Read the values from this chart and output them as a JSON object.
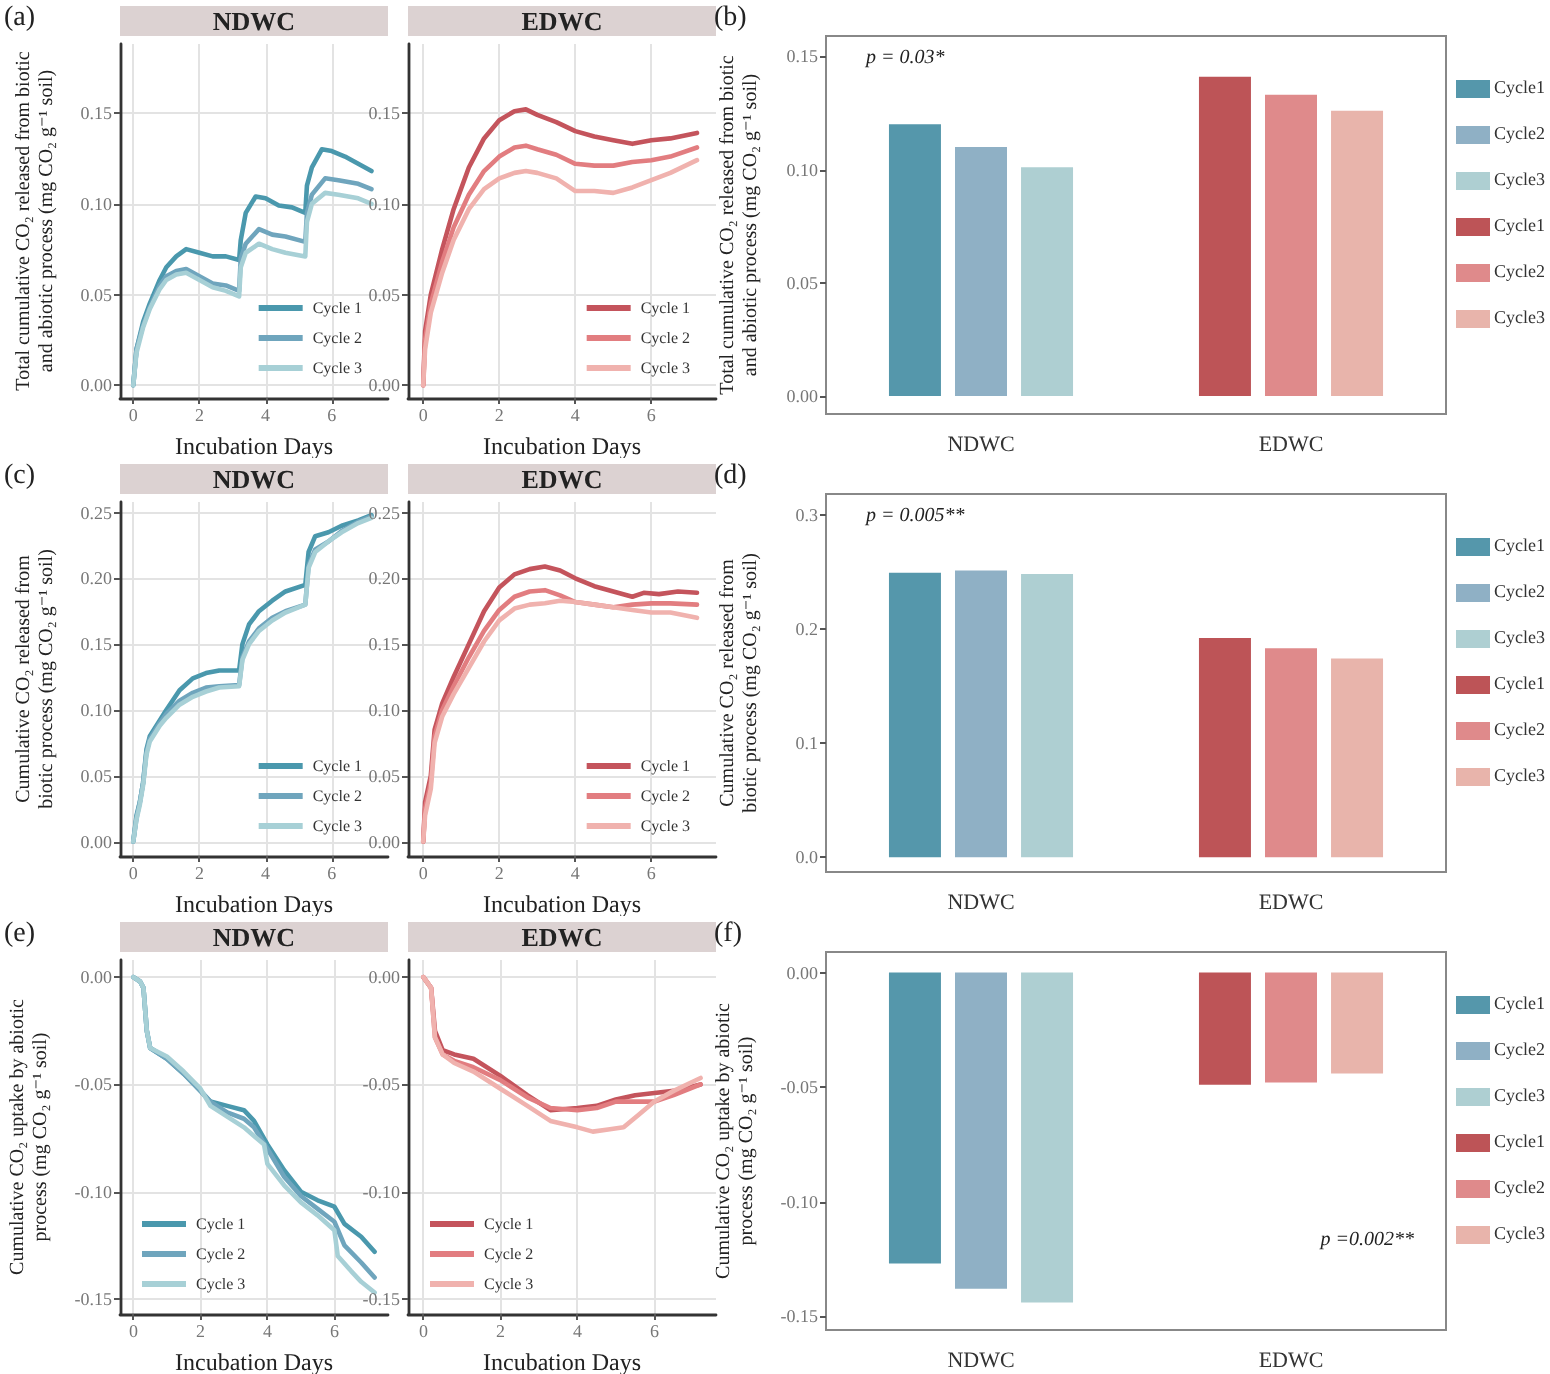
{
  "chart_data": [
    {
      "type": "line",
      "title": "NDWC",
      "xlabel": "Incubation Days",
      "ylabel": "Total cumulative CO₂ released from biotic and abiotic process (mg CO₂ g⁻¹ soil)",
      "annotations": [
        "(a)"
      ],
      "xlim": [
        -0.4,
        7.7
      ],
      "xticks": [
        0,
        2,
        4,
        6
      ],
      "ylim": [
        -0.007,
        0.188
      ],
      "yticks": [
        {
          "value": 0,
          "label": "0.00"
        },
        0.05,
        {
          "value": 0.1,
          "label": "0.10"
        },
        0.15
      ],
      "grid": true,
      "legend": "bottom right",
      "series": [
        {
          "name": "Cycle 1",
          "color": "#4a98ad",
          "x": [
            0,
            0.1,
            0.3,
            0.5,
            0.8,
            1.0,
            1.3,
            1.6,
            2.0,
            2.4,
            2.8,
            3.2,
            3.25,
            3.4,
            3.7,
            4.0,
            4.4,
            4.8,
            5.2,
            5.25,
            5.4,
            5.7,
            6.0,
            6.4,
            6.8,
            7.2
          ],
          "values": [
            0,
            0.02,
            0.035,
            0.045,
            0.058,
            0.065,
            0.071,
            0.075,
            0.073,
            0.071,
            0.071,
            0.069,
            0.08,
            0.095,
            0.104,
            0.103,
            0.099,
            0.098,
            0.095,
            0.11,
            0.12,
            0.13,
            0.129,
            0.126,
            0.122,
            0.118
          ]
        },
        {
          "name": "Cycle 2",
          "color": "#6fa5bd",
          "x": [
            0,
            0.1,
            0.3,
            0.5,
            0.8,
            1.0,
            1.3,
            1.6,
            2.0,
            2.4,
            2.8,
            3.2,
            3.25,
            3.4,
            3.8,
            4.2,
            4.6,
            5.2,
            5.25,
            5.4,
            5.8,
            6.2,
            6.8,
            7.2
          ],
          "values": [
            0,
            0.02,
            0.033,
            0.043,
            0.055,
            0.06,
            0.063,
            0.064,
            0.06,
            0.056,
            0.055,
            0.052,
            0.07,
            0.078,
            0.086,
            0.083,
            0.082,
            0.079,
            0.095,
            0.105,
            0.114,
            0.113,
            0.111,
            0.108
          ]
        },
        {
          "name": "Cycle 3",
          "color": "#a7d0d6",
          "x": [
            0,
            0.1,
            0.3,
            0.5,
            0.8,
            1.0,
            1.3,
            1.6,
            2.0,
            2.4,
            2.8,
            3.2,
            3.25,
            3.4,
            3.8,
            4.2,
            4.6,
            5.2,
            5.25,
            5.4,
            5.8,
            6.2,
            6.8,
            7.2
          ],
          "values": [
            0,
            0.018,
            0.032,
            0.042,
            0.053,
            0.058,
            0.061,
            0.062,
            0.058,
            0.054,
            0.052,
            0.049,
            0.065,
            0.073,
            0.078,
            0.075,
            0.073,
            0.071,
            0.09,
            0.1,
            0.106,
            0.105,
            0.103,
            0.1
          ]
        }
      ]
    },
    {
      "type": "line",
      "title": "EDWC",
      "xlabel": "Incubation Days",
      "xlim": [
        -0.4,
        7.7
      ],
      "xticks": [
        0,
        2,
        4,
        6
      ],
      "ylim": [
        -0.007,
        0.188
      ],
      "yticks": [
        {
          "value": 0,
          "label": "0.00"
        },
        0.05,
        {
          "value": 0.1,
          "label": "0.10"
        },
        0.15
      ],
      "grid": true,
      "legend": "bottom right",
      "series": [
        {
          "name": "Cycle 1",
          "color": "#c4545c",
          "x": [
            0,
            0.05,
            0.2,
            0.5,
            0.8,
            1.2,
            1.6,
            2.0,
            2.4,
            2.7,
            3.0,
            3.5,
            4.0,
            4.5,
            5.0,
            5.5,
            6.0,
            6.5,
            7.2
          ],
          "values": [
            0,
            0.03,
            0.05,
            0.075,
            0.097,
            0.12,
            0.136,
            0.146,
            0.151,
            0.152,
            0.149,
            0.145,
            0.14,
            0.137,
            0.135,
            0.133,
            0.135,
            0.136,
            0.139
          ]
        },
        {
          "name": "Cycle 2",
          "color": "#e27d80",
          "x": [
            0,
            0.05,
            0.2,
            0.5,
            0.8,
            1.2,
            1.6,
            2.0,
            2.4,
            2.7,
            3.0,
            3.5,
            4.0,
            4.5,
            5.0,
            5.5,
            6.0,
            6.5,
            7.2
          ],
          "values": [
            0,
            0.025,
            0.045,
            0.068,
            0.087,
            0.105,
            0.118,
            0.126,
            0.131,
            0.132,
            0.13,
            0.127,
            0.122,
            0.121,
            0.121,
            0.123,
            0.124,
            0.126,
            0.131
          ]
        },
        {
          "name": "Cycle 3",
          "color": "#f0b2ae",
          "x": [
            0,
            0.05,
            0.2,
            0.5,
            0.8,
            1.2,
            1.6,
            2.0,
            2.4,
            2.7,
            3.0,
            3.5,
            4.0,
            4.5,
            5.0,
            5.5,
            6.0,
            6.5,
            7.2
          ],
          "values": [
            0,
            0.02,
            0.04,
            0.062,
            0.08,
            0.097,
            0.108,
            0.114,
            0.117,
            0.118,
            0.117,
            0.114,
            0.107,
            0.107,
            0.106,
            0.109,
            0.113,
            0.117,
            0.124
          ]
        }
      ]
    },
    {
      "type": "bar",
      "ylabel": "Total cumulative CO₂ released from biotic and abiotic process (mg CO₂ g⁻¹ soil)",
      "annotations": [
        "(b)",
        "p = 0.03*"
      ],
      "categories": [
        "NDWC",
        "EDWC"
      ],
      "ylim": [
        -0.008,
        0.159
      ],
      "yticks": [
        {
          "value": 0,
          "label": "0.00"
        },
        0.05,
        {
          "value": 0.1,
          "label": "0.10"
        },
        0.15
      ],
      "legend": "right",
      "series": [
        {
          "name": "Cycle1",
          "color": "#5597ab",
          "values": [
            0.12,
            null
          ]
        },
        {
          "name": "Cycle2",
          "color": "#8fb0c5",
          "values": [
            0.11,
            null
          ]
        },
        {
          "name": "Cycle3",
          "color": "#aecfd2",
          "values": [
            0.101,
            null
          ]
        },
        {
          "name": "Cycle1",
          "color": "#bd5457",
          "values": [
            null,
            0.141
          ]
        },
        {
          "name": "Cycle2",
          "color": "#df8a8b",
          "values": [
            null,
            0.133
          ]
        },
        {
          "name": "Cycle3",
          "color": "#e8b4ab",
          "values": [
            null,
            0.126
          ]
        }
      ]
    },
    {
      "type": "line",
      "title": "NDWC",
      "xlabel": "Incubation Days",
      "ylabel": "Cumulative CO₂ released from biotic process (mg CO₂ g⁻¹ soil)",
      "annotations": [
        "(c)"
      ],
      "xlim": [
        -0.4,
        7.7
      ],
      "xticks": [
        0,
        2,
        4,
        6
      ],
      "ylim": [
        -0.011,
        0.258
      ],
      "yticks": [
        {
          "value": 0,
          "label": "0.00"
        },
        0.05,
        {
          "value": 0.1,
          "label": "0.10"
        },
        0.15,
        {
          "value": 0.2,
          "label": "0.20"
        },
        0.25
      ],
      "grid": true,
      "legend": "bottom right",
      "series": [
        {
          "name": "Cycle 1",
          "color": "#4a98ad",
          "x": [
            0,
            0.1,
            0.2,
            0.3,
            0.4,
            0.5,
            0.8,
            1.0,
            1.4,
            1.8,
            2.2,
            2.6,
            3.2,
            3.3,
            3.5,
            3.8,
            4.2,
            4.6,
            5.2,
            5.3,
            5.5,
            5.9,
            6.3,
            6.8,
            7.2
          ],
          "values": [
            0,
            0.02,
            0.03,
            0.045,
            0.07,
            0.08,
            0.092,
            0.1,
            0.115,
            0.124,
            0.128,
            0.13,
            0.13,
            0.15,
            0.165,
            0.175,
            0.183,
            0.19,
            0.195,
            0.22,
            0.232,
            0.235,
            0.24,
            0.244,
            0.248
          ]
        },
        {
          "name": "Cycle 2",
          "color": "#6fa5bd",
          "x": [
            0,
            0.1,
            0.2,
            0.3,
            0.4,
            0.5,
            0.8,
            1.0,
            1.4,
            1.8,
            2.2,
            2.6,
            3.2,
            3.3,
            3.5,
            3.8,
            4.2,
            4.6,
            5.2,
            5.3,
            5.5,
            5.9,
            6.3,
            6.8,
            7.2
          ],
          "values": [
            0,
            0.018,
            0.03,
            0.045,
            0.068,
            0.078,
            0.09,
            0.097,
            0.107,
            0.113,
            0.117,
            0.118,
            0.119,
            0.14,
            0.152,
            0.162,
            0.17,
            0.175,
            0.18,
            0.21,
            0.222,
            0.228,
            0.236,
            0.243,
            0.247
          ]
        },
        {
          "name": "Cycle 3",
          "color": "#a7d0d6",
          "x": [
            0,
            0.1,
            0.2,
            0.3,
            0.4,
            0.5,
            0.8,
            1.0,
            1.4,
            1.8,
            2.2,
            2.6,
            3.2,
            3.3,
            3.5,
            3.8,
            4.2,
            4.6,
            5.2,
            5.3,
            5.5,
            5.9,
            6.3,
            6.8,
            7.2
          ],
          "values": [
            0,
            0.017,
            0.028,
            0.043,
            0.066,
            0.076,
            0.088,
            0.094,
            0.104,
            0.11,
            0.114,
            0.117,
            0.118,
            0.138,
            0.15,
            0.16,
            0.168,
            0.174,
            0.18,
            0.208,
            0.22,
            0.228,
            0.235,
            0.242,
            0.246
          ]
        }
      ]
    },
    {
      "type": "line",
      "title": "EDWC",
      "xlabel": "Incubation Days",
      "xlim": [
        -0.4,
        7.7
      ],
      "xticks": [
        0,
        2,
        4,
        6
      ],
      "ylim": [
        -0.011,
        0.258
      ],
      "yticks": [
        {
          "value": 0,
          "label": "0.00"
        },
        0.05,
        {
          "value": 0.1,
          "label": "0.10"
        },
        0.15,
        {
          "value": 0.2,
          "label": "0.20"
        },
        0.25
      ],
      "grid": true,
      "legend": "bottom right",
      "series": [
        {
          "name": "Cycle 1",
          "color": "#c4545c",
          "x": [
            0,
            0.05,
            0.2,
            0.3,
            0.5,
            0.8,
            1.2,
            1.6,
            2.0,
            2.4,
            2.8,
            3.2,
            3.6,
            4.0,
            4.5,
            5.0,
            5.5,
            5.8,
            6.2,
            6.7,
            7.2
          ],
          "values": [
            0,
            0.03,
            0.05,
            0.085,
            0.105,
            0.125,
            0.15,
            0.175,
            0.193,
            0.203,
            0.207,
            0.209,
            0.206,
            0.2,
            0.194,
            0.19,
            0.186,
            0.189,
            0.188,
            0.19,
            0.189
          ]
        },
        {
          "name": "Cycle 2",
          "color": "#e27d80",
          "x": [
            0,
            0.05,
            0.2,
            0.3,
            0.5,
            0.8,
            1.2,
            1.6,
            2.0,
            2.4,
            2.8,
            3.2,
            3.6,
            4.0,
            4.5,
            5.0,
            5.5,
            6.0,
            6.5,
            7.2
          ],
          "values": [
            0,
            0.025,
            0.045,
            0.08,
            0.1,
            0.118,
            0.14,
            0.16,
            0.176,
            0.186,
            0.19,
            0.191,
            0.187,
            0.182,
            0.18,
            0.178,
            0.18,
            0.181,
            0.181,
            0.18
          ]
        },
        {
          "name": "Cycle 3",
          "color": "#f0b2ae",
          "x": [
            0,
            0.05,
            0.2,
            0.3,
            0.5,
            0.8,
            1.2,
            1.6,
            2.0,
            2.4,
            2.8,
            3.2,
            3.6,
            4.0,
            4.5,
            5.0,
            5.5,
            6.0,
            6.5,
            7.2
          ],
          "values": [
            0,
            0.02,
            0.04,
            0.075,
            0.095,
            0.112,
            0.132,
            0.152,
            0.168,
            0.177,
            0.18,
            0.181,
            0.183,
            0.182,
            0.18,
            0.178,
            0.176,
            0.174,
            0.174,
            0.17
          ]
        }
      ]
    },
    {
      "type": "bar",
      "ylabel": "Cumulative CO₂ released from biotic process (mg CO₂ g⁻¹ soil)",
      "annotations": [
        "(d)",
        "p = 0.005**"
      ],
      "categories": [
        "NDWC",
        "EDWC"
      ],
      "ylim": [
        -0.013,
        0.318
      ],
      "yticks": [
        {
          "value": 0,
          "label": "0.0"
        },
        0.1,
        0.2,
        0.3
      ],
      "legend": "right",
      "series": [
        {
          "name": "Cycle1",
          "color": "#5597ab",
          "values": [
            0.249,
            null
          ]
        },
        {
          "name": "Cycle2",
          "color": "#8fb0c5",
          "values": [
            0.251,
            null
          ]
        },
        {
          "name": "Cycle3",
          "color": "#aecfd2",
          "values": [
            0.248,
            null
          ]
        },
        {
          "name": "Cycle1",
          "color": "#bd5457",
          "values": [
            null,
            0.192
          ]
        },
        {
          "name": "Cycle2",
          "color": "#df8a8b",
          "values": [
            null,
            0.183
          ]
        },
        {
          "name": "Cycle3",
          "color": "#e8b4ab",
          "values": [
            null,
            0.174
          ]
        }
      ]
    },
    {
      "type": "line",
      "title": "NDWC",
      "xlabel": "Incubation Days",
      "ylabel": "Cumulative CO₂ uptake by abiotic process (mg CO₂ g⁻¹ soil)",
      "annotations": [
        "(e)"
      ],
      "xlim": [
        -0.4,
        7.6
      ],
      "xticks": [
        0,
        2,
        4,
        6
      ],
      "ylim": [
        -0.157,
        0.008
      ],
      "yticks": [
        {
          "value": -0.15,
          "label": "-0.15"
        },
        {
          "value": -0.1,
          "label": "-0.10"
        },
        -0.05,
        {
          "value": 0,
          "label": "0.00"
        }
      ],
      "grid": true,
      "legend": "bottom left",
      "series": [
        {
          "name": "Cycle 1",
          "color": "#4a98ad",
          "x": [
            0,
            0.2,
            0.3,
            0.4,
            0.5,
            1.0,
            1.5,
            2.0,
            2.3,
            2.8,
            3.3,
            3.6,
            4.0,
            4.5,
            5.0,
            5.5,
            6.0,
            6.3,
            6.8,
            7.2
          ],
          "values": [
            0,
            -0.002,
            -0.005,
            -0.025,
            -0.033,
            -0.038,
            -0.045,
            -0.053,
            -0.058,
            -0.06,
            -0.062,
            -0.067,
            -0.078,
            -0.09,
            -0.1,
            -0.104,
            -0.107,
            -0.115,
            -0.121,
            -0.128
          ]
        },
        {
          "name": "Cycle 2",
          "color": "#6fa5bd",
          "x": [
            0,
            0.2,
            0.3,
            0.4,
            0.5,
            1.0,
            1.5,
            2.0,
            2.3,
            2.8,
            3.3,
            3.6,
            4.0,
            4.5,
            5.0,
            5.5,
            6.0,
            6.3,
            6.8,
            7.2
          ],
          "values": [
            0,
            -0.002,
            -0.005,
            -0.025,
            -0.033,
            -0.038,
            -0.045,
            -0.053,
            -0.058,
            -0.063,
            -0.066,
            -0.07,
            -0.08,
            -0.093,
            -0.102,
            -0.108,
            -0.114,
            -0.125,
            -0.133,
            -0.14
          ]
        },
        {
          "name": "Cycle 3",
          "color": "#a7d0d6",
          "x": [
            0,
            0.2,
            0.3,
            0.4,
            0.5,
            1.0,
            1.5,
            2.0,
            2.3,
            2.8,
            3.3,
            3.6,
            3.9,
            4.0,
            4.5,
            5.0,
            5.5,
            6.0,
            6.1,
            6.5,
            6.8,
            7.2
          ],
          "values": [
            0,
            -0.002,
            -0.005,
            -0.025,
            -0.033,
            -0.037,
            -0.044,
            -0.052,
            -0.06,
            -0.065,
            -0.07,
            -0.074,
            -0.078,
            -0.087,
            -0.097,
            -0.105,
            -0.111,
            -0.118,
            -0.13,
            -0.137,
            -0.142,
            -0.147
          ]
        }
      ]
    },
    {
      "type": "line",
      "title": "EDWC",
      "xlabel": "Incubation Days",
      "xlim": [
        -0.4,
        7.6
      ],
      "xticks": [
        0,
        2,
        4,
        6
      ],
      "ylim": [
        -0.157,
        0.008
      ],
      "yticks": [
        {
          "value": -0.15,
          "label": "-0.15"
        },
        {
          "value": -0.1,
          "label": "-0.10"
        },
        -0.05,
        {
          "value": 0,
          "label": "0.00"
        }
      ],
      "grid": true,
      "legend": "bottom left",
      "series": [
        {
          "name": "Cycle 1",
          "color": "#c4545c",
          "x": [
            0,
            0.2,
            0.3,
            0.5,
            0.8,
            1.3,
            2.0,
            2.7,
            3.3,
            4.0,
            4.5,
            5.0,
            5.5,
            6.0,
            6.5,
            7.2
          ],
          "values": [
            0,
            -0.005,
            -0.025,
            -0.034,
            -0.036,
            -0.038,
            -0.046,
            -0.055,
            -0.062,
            -0.061,
            -0.06,
            -0.057,
            -0.055,
            -0.054,
            -0.053,
            -0.05
          ]
        },
        {
          "name": "Cycle 2",
          "color": "#e27d80",
          "x": [
            0,
            0.2,
            0.3,
            0.5,
            0.8,
            1.3,
            2.0,
            2.7,
            3.3,
            4.0,
            4.5,
            5.0,
            5.5,
            6.0,
            6.5,
            7.2
          ],
          "values": [
            0,
            -0.005,
            -0.028,
            -0.036,
            -0.039,
            -0.042,
            -0.048,
            -0.056,
            -0.061,
            -0.062,
            -0.061,
            -0.058,
            -0.058,
            -0.058,
            -0.055,
            -0.05
          ]
        },
        {
          "name": "Cycle 3",
          "color": "#f0b2ae",
          "x": [
            0,
            0.2,
            0.3,
            0.5,
            0.8,
            1.3,
            2.0,
            2.7,
            3.3,
            4.0,
            4.4,
            4.8,
            5.2,
            5.6,
            6.0,
            6.5,
            7.2
          ],
          "values": [
            0,
            -0.005,
            -0.028,
            -0.036,
            -0.04,
            -0.044,
            -0.052,
            -0.06,
            -0.067,
            -0.07,
            -0.072,
            -0.071,
            -0.07,
            -0.064,
            -0.058,
            -0.053,
            -0.047
          ]
        }
      ]
    },
    {
      "type": "bar",
      "ylabel": "Cumulative CO₂ uptake by abiotic process (mg CO₂ g⁻¹ soil)",
      "annotations": [
        "(f)",
        "p =0.002**"
      ],
      "categories": [
        "NDWC",
        "EDWC"
      ],
      "ylim": [
        -0.156,
        0.009
      ],
      "yticks": [
        {
          "value": -0.15,
          "label": "-0.15"
        },
        {
          "value": -0.1,
          "label": "-0.10"
        },
        -0.05,
        {
          "value": 0,
          "label": "0.00"
        }
      ],
      "legend": "right",
      "series": [
        {
          "name": "Cycle1",
          "color": "#5597ab",
          "values": [
            -0.127,
            null
          ]
        },
        {
          "name": "Cycle2",
          "color": "#8fb0c5",
          "values": [
            -0.138,
            null
          ]
        },
        {
          "name": "Cycle3",
          "color": "#aecfd2",
          "values": [
            -0.144,
            null
          ]
        },
        {
          "name": "Cycle1",
          "color": "#bd5457",
          "values": [
            null,
            -0.049
          ]
        },
        {
          "name": "Cycle2",
          "color": "#df8a8b",
          "values": [
            null,
            -0.048
          ]
        },
        {
          "name": "Cycle3",
          "color": "#e8b4ab",
          "values": [
            null,
            -0.044
          ]
        }
      ]
    }
  ]
}
